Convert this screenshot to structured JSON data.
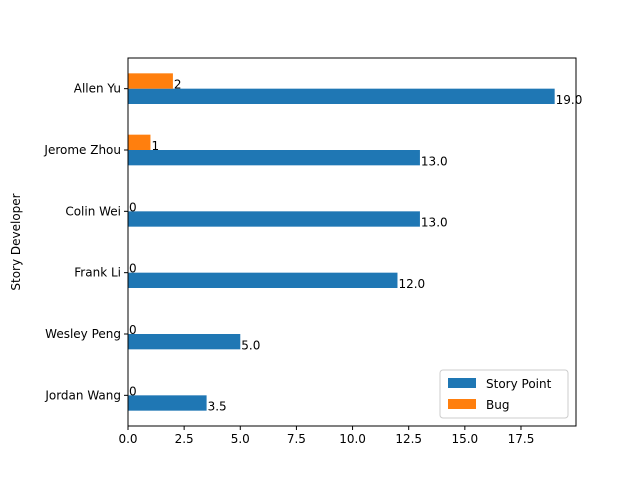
{
  "chart_data": {
    "type": "bar",
    "orientation": "horizontal",
    "categories": [
      "Jordan Wang",
      "Wesley Peng",
      "Frank Li",
      "Colin Wei",
      "Jerome Zhou",
      "Allen Yu"
    ],
    "series": [
      {
        "name": "Story Point",
        "color": "#1f77b4",
        "values": [
          3.5,
          5.0,
          12.0,
          13.0,
          13.0,
          19.0
        ],
        "labels": [
          "3.5",
          "5.0",
          "12.0",
          "13.0",
          "13.0",
          "19.0"
        ]
      },
      {
        "name": "Bug",
        "color": "#ff7f0e",
        "values": [
          0,
          0,
          0,
          0,
          1,
          2
        ],
        "labels": [
          "0",
          "0",
          "0",
          "0",
          "1",
          "2"
        ]
      }
    ],
    "xlabel": "",
    "ylabel": "Story Developer",
    "xlim": [
      0,
      19.95
    ],
    "xticks": [
      0.0,
      2.5,
      5.0,
      7.5,
      10.0,
      12.5,
      15.0,
      17.5
    ],
    "xtick_labels": [
      "0.0",
      "2.5",
      "5.0",
      "7.5",
      "10.0",
      "12.5",
      "15.0",
      "17.5"
    ],
    "grid": false,
    "legend_position": "lower-right"
  }
}
